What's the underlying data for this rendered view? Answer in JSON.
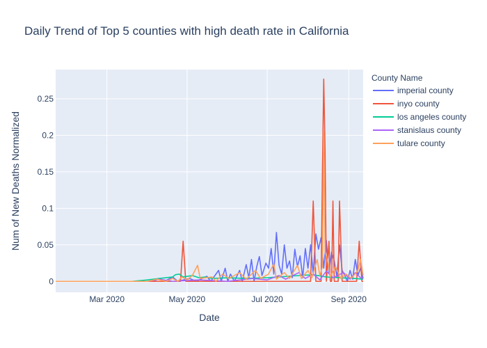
{
  "chart_data": {
    "type": "line",
    "title": "Daily Trend of Top 5 counties with high death rate in California",
    "xlabel": "Date",
    "ylabel": "Num of New Deaths Normalized",
    "x_range": [
      "2020-01-22",
      "2020-09-12"
    ],
    "x_ticks": [
      {
        "date": "2020-03-01",
        "label": "Mar 2020"
      },
      {
        "date": "2020-05-01",
        "label": "May 2020"
      },
      {
        "date": "2020-07-01",
        "label": "Jul 2020"
      },
      {
        "date": "2020-09-01",
        "label": "Sep 2020"
      }
    ],
    "ylim": [
      -0.015,
      0.29
    ],
    "y_ticks": [
      {
        "value": 0,
        "label": "0"
      },
      {
        "value": 0.05,
        "label": "0.05"
      },
      {
        "value": 0.1,
        "label": "0.1"
      },
      {
        "value": 0.15,
        "label": "0.15"
      },
      {
        "value": 0.2,
        "label": "0.2"
      },
      {
        "value": 0.25,
        "label": "0.25"
      }
    ],
    "grid": true,
    "legend_title": "County Name",
    "legend_position": "right",
    "series": [
      {
        "name": "imperial county",
        "color": "#636efa",
        "points": [
          [
            "2020-01-22",
            0
          ],
          [
            "2020-04-05",
            0
          ],
          [
            "2020-04-10",
            0.004
          ],
          [
            "2020-04-14",
            0
          ],
          [
            "2020-04-20",
            0.006
          ],
          [
            "2020-04-24",
            0
          ],
          [
            "2020-05-03",
            0.004
          ],
          [
            "2020-05-08",
            0
          ],
          [
            "2020-05-16",
            0.007
          ],
          [
            "2020-05-19",
            0
          ],
          [
            "2020-05-25",
            0.015
          ],
          [
            "2020-05-27",
            0
          ],
          [
            "2020-05-30",
            0.018
          ],
          [
            "2020-06-01",
            0
          ],
          [
            "2020-06-03",
            0.01
          ],
          [
            "2020-06-06",
            0
          ],
          [
            "2020-06-10",
            0.015
          ],
          [
            "2020-06-12",
            0
          ],
          [
            "2020-06-15",
            0.023
          ],
          [
            "2020-06-17",
            0.005
          ],
          [
            "2020-06-19",
            0.03
          ],
          [
            "2020-06-21",
            0
          ],
          [
            "2020-06-23",
            0.02
          ],
          [
            "2020-06-25",
            0.034
          ],
          [
            "2020-06-27",
            0.008
          ],
          [
            "2020-06-30",
            0.025
          ],
          [
            "2020-07-02",
            0.018
          ],
          [
            "2020-07-04",
            0.045
          ],
          [
            "2020-07-06",
            0.01
          ],
          [
            "2020-07-08",
            0.067
          ],
          [
            "2020-07-10",
            0.022
          ],
          [
            "2020-07-12",
            0.01
          ],
          [
            "2020-07-14",
            0.05
          ],
          [
            "2020-07-16",
            0.018
          ],
          [
            "2020-07-18",
            0.028
          ],
          [
            "2020-07-20",
            0.005
          ],
          [
            "2020-07-22",
            0.044
          ],
          [
            "2020-07-24",
            0.02
          ],
          [
            "2020-07-26",
            0.035
          ],
          [
            "2020-07-28",
            0.005
          ],
          [
            "2020-07-30",
            0.045
          ],
          [
            "2020-08-01",
            0.018
          ],
          [
            "2020-08-03",
            0.05
          ],
          [
            "2020-08-05",
            0.01
          ],
          [
            "2020-08-07",
            0.065
          ],
          [
            "2020-08-09",
            0.044
          ],
          [
            "2020-08-11",
            0.06
          ],
          [
            "2020-08-13",
            0.018
          ],
          [
            "2020-08-15",
            0.056
          ],
          [
            "2020-08-17",
            0.012
          ],
          [
            "2020-08-19",
            0.04
          ],
          [
            "2020-08-21",
            0.028
          ],
          [
            "2020-08-23",
            0.006
          ],
          [
            "2020-08-25",
            0.05
          ],
          [
            "2020-08-27",
            0.015
          ],
          [
            "2020-08-29",
            0.008
          ],
          [
            "2020-08-31",
            0.0
          ],
          [
            "2020-09-02",
            0.015
          ],
          [
            "2020-09-04",
            0.003
          ],
          [
            "2020-09-06",
            0.03
          ],
          [
            "2020-09-08",
            0.008
          ],
          [
            "2020-09-10",
            0.018
          ],
          [
            "2020-09-12",
            0.004
          ]
        ]
      },
      {
        "name": "inyo county",
        "color": "#ef553b",
        "points": [
          [
            "2020-01-22",
            0
          ],
          [
            "2020-04-26",
            0
          ],
          [
            "2020-04-28",
            0.055
          ],
          [
            "2020-04-30",
            0
          ],
          [
            "2020-08-03",
            0
          ],
          [
            "2020-08-05",
            0.11
          ],
          [
            "2020-08-07",
            0
          ],
          [
            "2020-08-11",
            0
          ],
          [
            "2020-08-12",
            0.15
          ],
          [
            "2020-08-13",
            0.277
          ],
          [
            "2020-08-14",
            0.18
          ],
          [
            "2020-08-15",
            0
          ],
          [
            "2020-08-17",
            0.055
          ],
          [
            "2020-08-18",
            0
          ],
          [
            "2020-08-19",
            0
          ],
          [
            "2020-08-20",
            0.11
          ],
          [
            "2020-08-21",
            0
          ],
          [
            "2020-08-24",
            0
          ],
          [
            "2020-08-25",
            0.11
          ],
          [
            "2020-08-27",
            0
          ],
          [
            "2020-09-07",
            0
          ],
          [
            "2020-09-09",
            0.055
          ],
          [
            "2020-09-11",
            0
          ],
          [
            "2020-09-12",
            0
          ]
        ]
      },
      {
        "name": "los angeles county",
        "color": "#00cc96",
        "points": [
          [
            "2020-01-22",
            0
          ],
          [
            "2020-03-20",
            0
          ],
          [
            "2020-04-01",
            0.002
          ],
          [
            "2020-04-10",
            0.004
          ],
          [
            "2020-04-20",
            0.006
          ],
          [
            "2020-04-22",
            0.009
          ],
          [
            "2020-04-25",
            0.01
          ],
          [
            "2020-04-28",
            0.006
          ],
          [
            "2020-05-05",
            0.008
          ],
          [
            "2020-05-10",
            0.005
          ],
          [
            "2020-05-15",
            0.006
          ],
          [
            "2020-05-20",
            0.004
          ],
          [
            "2020-06-01",
            0.005
          ],
          [
            "2020-06-15",
            0.004
          ],
          [
            "2020-07-01",
            0.005
          ],
          [
            "2020-07-10",
            0.006
          ],
          [
            "2020-07-25",
            0.008
          ],
          [
            "2020-08-05",
            0.009
          ],
          [
            "2020-08-15",
            0.006
          ],
          [
            "2020-08-25",
            0.005
          ],
          [
            "2020-09-05",
            0.004
          ],
          [
            "2020-09-12",
            0.003
          ]
        ]
      },
      {
        "name": "stanislaus county",
        "color": "#ab63fa",
        "points": [
          [
            "2020-01-22",
            0
          ],
          [
            "2020-04-01",
            0
          ],
          [
            "2020-04-10",
            0.003
          ],
          [
            "2020-04-20",
            0
          ],
          [
            "2020-05-10",
            0.002
          ],
          [
            "2020-06-01",
            0
          ],
          [
            "2020-06-20",
            0.004
          ],
          [
            "2020-07-01",
            0.002
          ],
          [
            "2020-07-10",
            0.008
          ],
          [
            "2020-07-15",
            0.003
          ],
          [
            "2020-07-25",
            0.012
          ],
          [
            "2020-07-30",
            0.004
          ],
          [
            "2020-08-05",
            0.01
          ],
          [
            "2020-08-10",
            0.002
          ],
          [
            "2020-08-15",
            0.014
          ],
          [
            "2020-08-20",
            0.005
          ],
          [
            "2020-08-28",
            0.012
          ],
          [
            "2020-09-02",
            0.003
          ],
          [
            "2020-09-06",
            0.012
          ],
          [
            "2020-09-10",
            0.005
          ],
          [
            "2020-09-12",
            0.004
          ]
        ]
      },
      {
        "name": "tulare county",
        "color": "#ffa15a",
        "points": [
          [
            "2020-01-22",
            0
          ],
          [
            "2020-04-01",
            0
          ],
          [
            "2020-04-08",
            0.003
          ],
          [
            "2020-04-15",
            0
          ],
          [
            "2020-04-20",
            0.004
          ],
          [
            "2020-04-24",
            0
          ],
          [
            "2020-04-27",
            0.006
          ],
          [
            "2020-05-01",
            0.002
          ],
          [
            "2020-05-05",
            0.008
          ],
          [
            "2020-05-09",
            0.022
          ],
          [
            "2020-05-11",
            0.004
          ],
          [
            "2020-05-20",
            0.006
          ],
          [
            "2020-05-23",
            0
          ],
          [
            "2020-05-28",
            0.01
          ],
          [
            "2020-06-02",
            0.004
          ],
          [
            "2020-06-10",
            0.012
          ],
          [
            "2020-06-15",
            0.003
          ],
          [
            "2020-06-22",
            0.015
          ],
          [
            "2020-06-26",
            0.004
          ],
          [
            "2020-07-02",
            0.01
          ],
          [
            "2020-07-06",
            0.024
          ],
          [
            "2020-07-08",
            0.003
          ],
          [
            "2020-07-14",
            0.012
          ],
          [
            "2020-07-18",
            0.004
          ],
          [
            "2020-07-24",
            0.022
          ],
          [
            "2020-07-27",
            0.004
          ],
          [
            "2020-08-01",
            0.015
          ],
          [
            "2020-08-04",
            0.005
          ],
          [
            "2020-08-08",
            0.03
          ],
          [
            "2020-08-10",
            0.008
          ],
          [
            "2020-08-12",
            0.02
          ],
          [
            "2020-08-13",
            0.205
          ],
          [
            "2020-08-14",
            0.04
          ],
          [
            "2020-08-16",
            0.03
          ],
          [
            "2020-08-18",
            0.006
          ],
          [
            "2020-08-22",
            0.02
          ],
          [
            "2020-08-26",
            0.004
          ],
          [
            "2020-08-30",
            0.01
          ],
          [
            "2020-09-03",
            0.004
          ],
          [
            "2020-09-08",
            0.015
          ],
          [
            "2020-09-10",
            0.03
          ],
          [
            "2020-09-12",
            0.008
          ]
        ]
      }
    ]
  }
}
